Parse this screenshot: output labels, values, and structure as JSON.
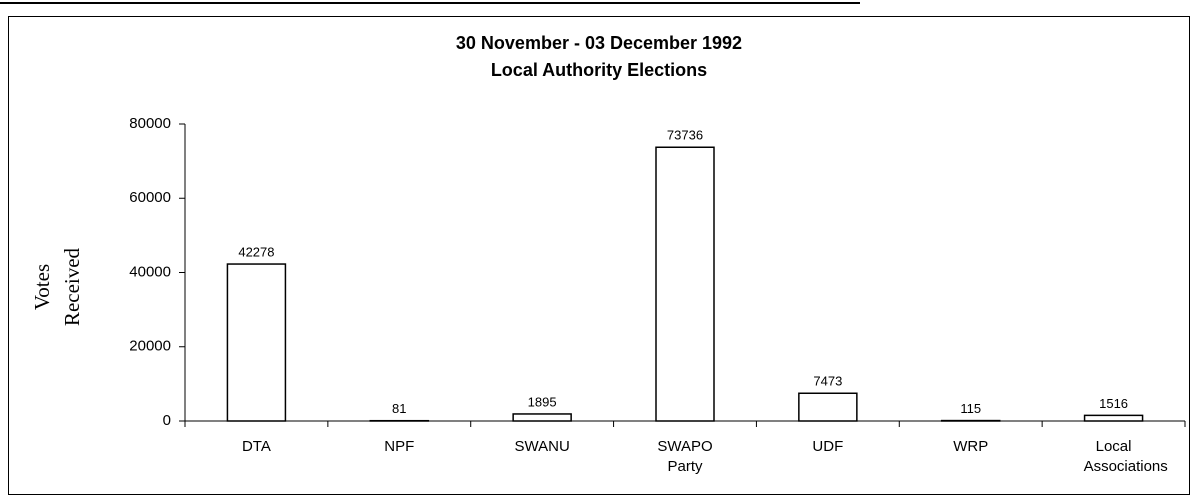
{
  "chart_data": {
    "type": "bar",
    "title": "30 November - 03 December 1992",
    "subtitle": "Local Authority Elections",
    "ylabel": "Votes Received",
    "categories": [
      "DTA",
      "NPF",
      "SWANU",
      "SWAPO Party",
      "UDF",
      "WRP",
      "Local Associations"
    ],
    "values": [
      42278,
      81,
      1895,
      73736,
      7473,
      115,
      1516
    ],
    "color": "#ffffff",
    "ylim": [
      0,
      80000
    ],
    "yticks": [
      0,
      20000,
      40000,
      60000,
      80000
    ],
    "grid": false
  }
}
